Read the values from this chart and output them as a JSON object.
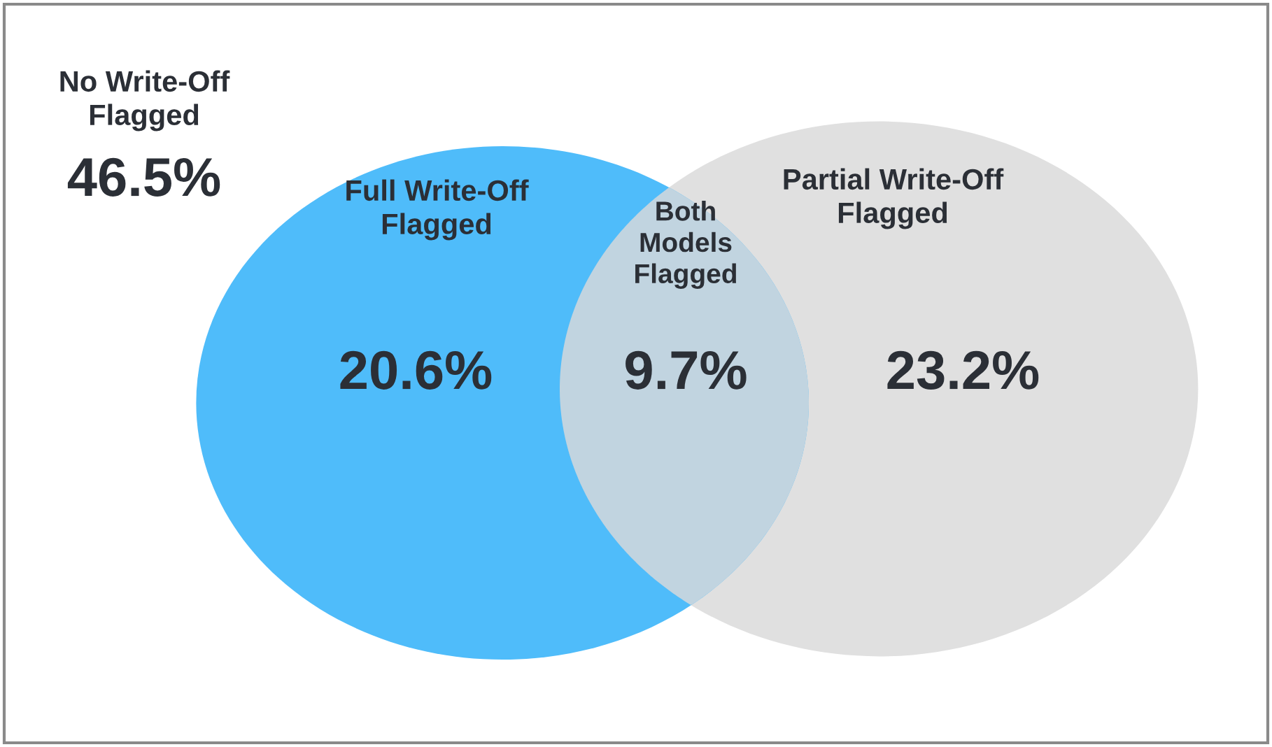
{
  "chart_data": {
    "type": "other",
    "categories": [
      "No Write-Off\nFlagged",
      "Full Write-Off\nFlagged",
      "Both\nModels\nFlagged",
      "Partial Write-Off\nFlagged"
    ],
    "values": [
      46.5,
      20.6,
      9.7,
      23.2
    ],
    "value_labels": [
      "46.5%",
      "20.6%",
      "9.7%",
      "23.2%"
    ],
    "colors": [
      null,
      "#4fbcfa",
      "#c1d4e0",
      "#e0e0e0"
    ]
  }
}
